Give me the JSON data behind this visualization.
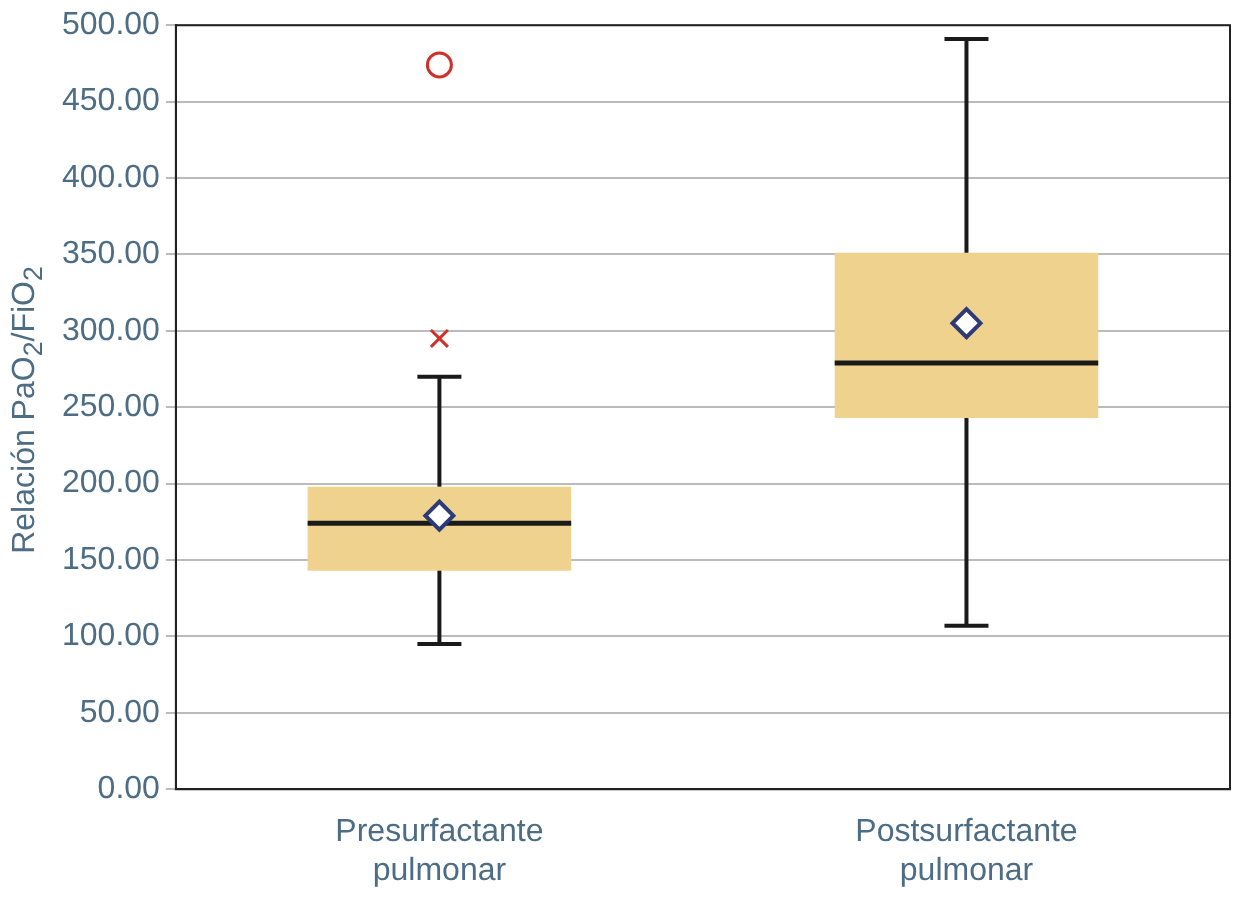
{
  "chart_data": {
    "type": "box",
    "ylabel": "Relación PaO$_{2}$/FiO$_{2}$",
    "categories": [
      "Presurfactante pulmonar",
      "Postsurfactante pulmonar"
    ],
    "color": "#f0d28f",
    "boxes": [
      {
        "low": 95,
        "q1": 143,
        "median": 174,
        "q3": 198,
        "high": 270,
        "mean": 179
      },
      {
        "low": 107,
        "q1": 243,
        "median": 279,
        "q3": 351,
        "high": 491,
        "mean": 305
      }
    ],
    "series": [
      {
        "type": "scatter",
        "x": [
          "Presurfactante pulmonar"
        ],
        "values": [
          474
        ],
        "color": "#d0302a",
        "marker": "circle"
      },
      {
        "type": "scatter",
        "x": [
          "Presurfactante pulmonar"
        ],
        "values": [
          295
        ],
        "color": "#d0302a",
        "marker": "cross"
      }
    ],
    "ylim": [
      0,
      500
    ],
    "yticks": [
      {
        "value": 0,
        "label": "0.00"
      },
      {
        "value": 50,
        "label": "50.00"
      },
      {
        "value": 100,
        "label": "100.00"
      },
      {
        "value": 150,
        "label": "150.00"
      },
      {
        "value": 200,
        "label": "200.00"
      },
      {
        "value": 250,
        "label": "250.00"
      },
      {
        "value": 300,
        "label": "300.00"
      },
      {
        "value": 350,
        "label": "350.00"
      },
      {
        "value": 400,
        "label": "400.00"
      },
      {
        "value": 450,
        "label": "450.00"
      },
      {
        "value": 500,
        "label": "500.00"
      }
    ],
    "grid": "y"
  }
}
